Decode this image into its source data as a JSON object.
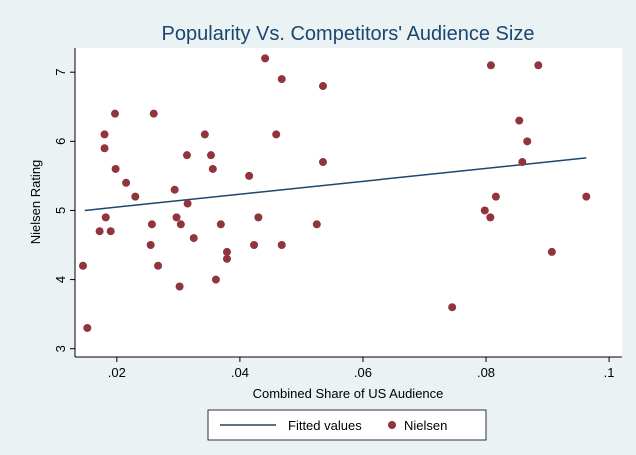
{
  "chart_data": {
    "type": "scatter",
    "title": "Popularity Vs. Competitors' Audience Size",
    "x_label": "Combined Share of US Audience",
    "y_label": "Nielsen Rating",
    "xlim": [
      0.0132,
      0.1021
    ],
    "ylim": [
      2.88,
      7.35
    ],
    "xticks": [
      {
        "value": 0.02,
        "label": ".02"
      },
      {
        "value": 0.04,
        "label": ".04"
      },
      {
        "value": 0.06,
        "label": ".06"
      },
      {
        "value": 0.08,
        "label": ".08"
      },
      {
        "value": 0.1,
        "label": ".1"
      }
    ],
    "yticks": [
      3,
      4,
      5,
      6,
      7
    ],
    "grid": false,
    "legend": "bottom",
    "series": [
      {
        "name": "Fitted values",
        "type": "line",
        "color": "#1a476f",
        "x": [
          0.0148,
          0.0963
        ],
        "values": [
          5.0,
          5.76
        ]
      },
      {
        "name": "Nielsen",
        "type": "scatter",
        "color": "#90353b",
        "x": [
          0.0145,
          0.0152,
          0.0172,
          0.0182,
          0.018,
          0.018,
          0.019,
          0.0197,
          0.0198,
          0.0215,
          0.023,
          0.0255,
          0.0257,
          0.026,
          0.0267,
          0.0294,
          0.0297,
          0.0304,
          0.0302,
          0.0314,
          0.0315,
          0.0325,
          0.0343,
          0.0353,
          0.0356,
          0.0361,
          0.0369,
          0.0379,
          0.0379,
          0.0415,
          0.0423,
          0.043,
          0.0441,
          0.0459,
          0.0468,
          0.0468,
          0.0525,
          0.0535,
          0.0535,
          0.0745,
          0.0798,
          0.0807,
          0.0808,
          0.0816,
          0.0854,
          0.0867,
          0.0859,
          0.0885,
          0.0907,
          0.0963
        ],
        "values": [
          4.2,
          3.3,
          4.7,
          4.9,
          6.1,
          5.9,
          4.7,
          6.4,
          5.6,
          5.4,
          5.2,
          4.5,
          4.8,
          6.4,
          4.2,
          5.3,
          4.9,
          4.8,
          3.9,
          5.8,
          5.1,
          4.6,
          6.1,
          5.8,
          5.6,
          4.0,
          4.8,
          4.4,
          4.3,
          5.5,
          4.5,
          4.9,
          7.2,
          6.1,
          6.9,
          4.5,
          4.8,
          6.8,
          5.7,
          3.6,
          5.0,
          4.9,
          7.1,
          5.2,
          6.3,
          6.0,
          5.7,
          7.1,
          4.4,
          5.2
        ]
      }
    ]
  }
}
